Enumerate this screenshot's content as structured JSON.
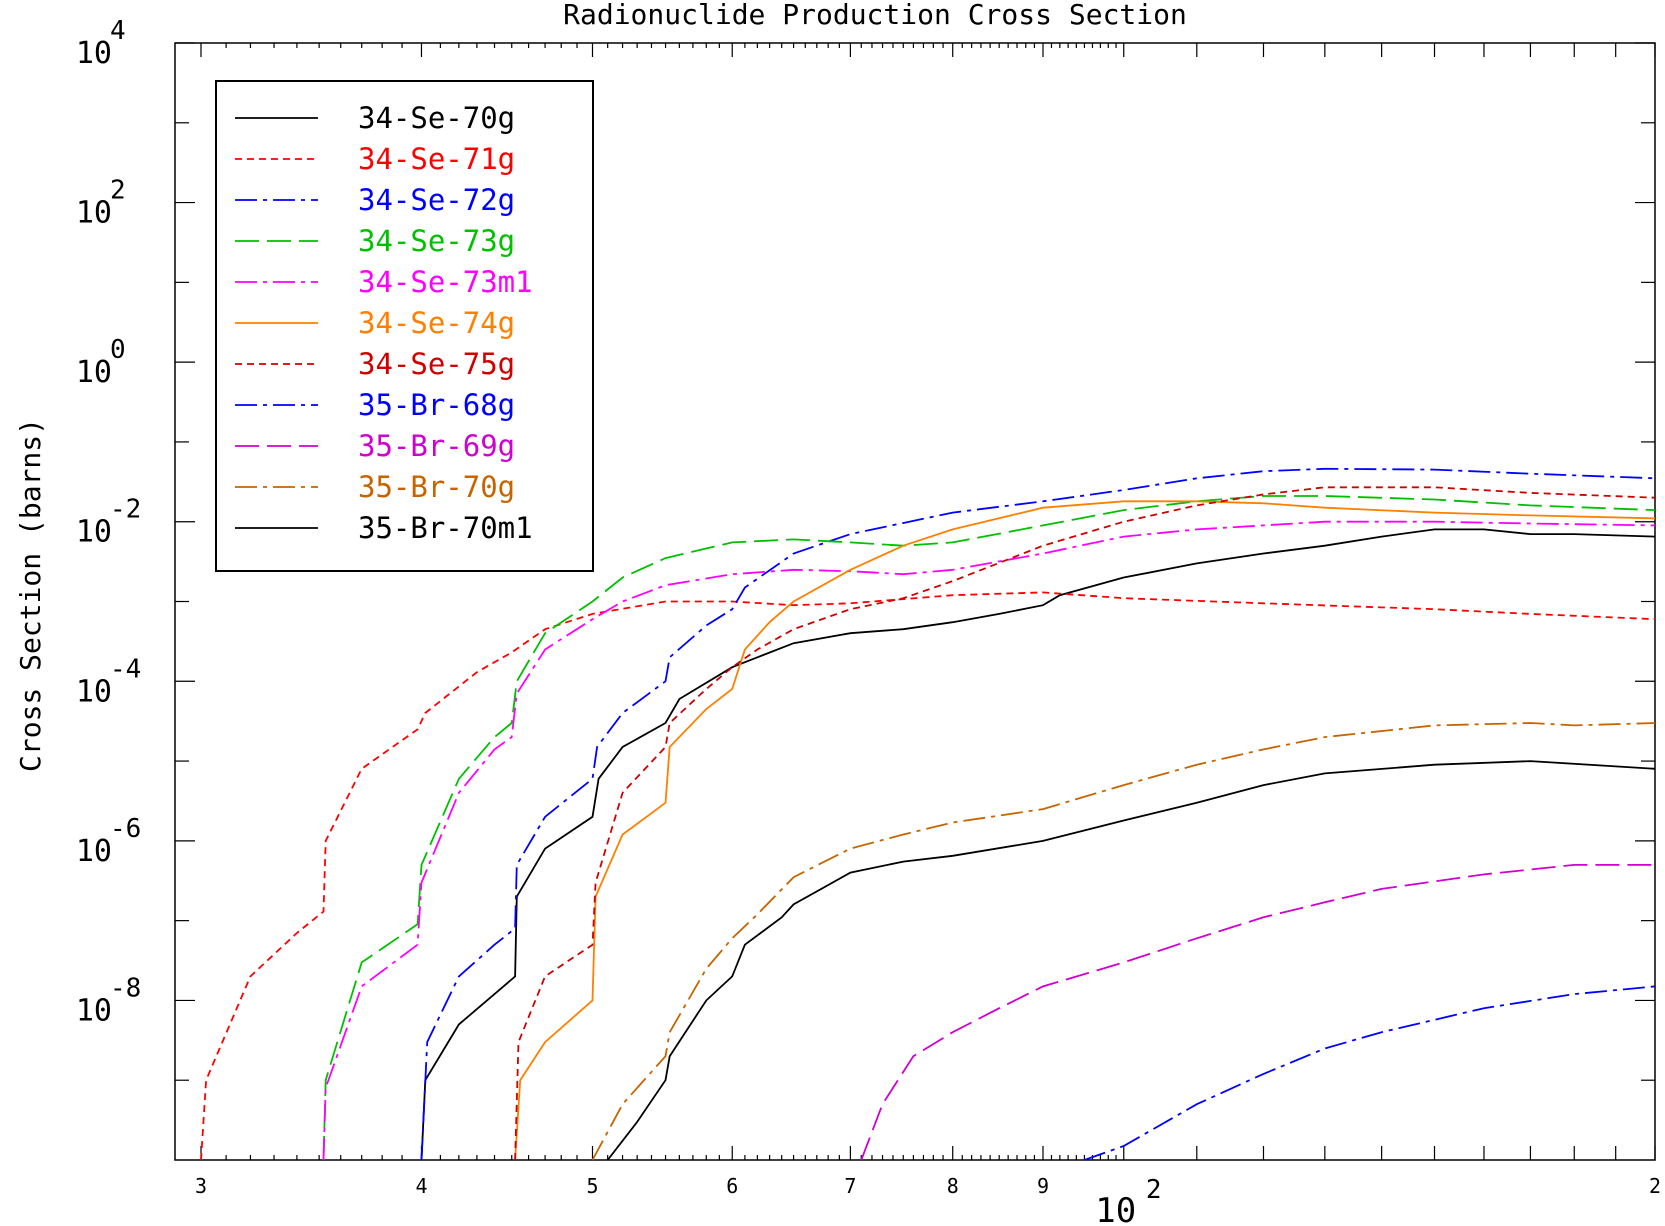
{
  "chart_data": {
    "type": "line",
    "title": "Radionuclide Production Cross Section",
    "xlabel": "",
    "ylabel": "Cross Section (barns)",
    "x_scale": "log",
    "y_scale": "log",
    "xlim": [
      29,
      200
    ],
    "ylim": [
      1e-10,
      10000
    ],
    "legend_position": "top-left",
    "grid": false,
    "x_tick_labels": [
      {
        "value": 30,
        "label": "3"
      },
      {
        "value": 40,
        "label": "4"
      },
      {
        "value": 50,
        "label": "5"
      },
      {
        "value": 60,
        "label": "6"
      },
      {
        "value": 70,
        "label": "7"
      },
      {
        "value": 80,
        "label": "8"
      },
      {
        "value": 90,
        "label": "9"
      },
      {
        "value": 200,
        "label": "2"
      }
    ],
    "x_decade_label": {
      "value": 100,
      "base": "10",
      "exp": "2"
    },
    "y_tick_labels": [
      {
        "value": 10000,
        "base": "10",
        "exp": "4"
      },
      {
        "value": 100,
        "base": "10",
        "exp": "2"
      },
      {
        "value": 1,
        "base": "10",
        "exp": "0"
      },
      {
        "value": 0.01,
        "base": "10",
        "exp": "-2"
      },
      {
        "value": 0.0001,
        "base": "10",
        "exp": "-4"
      },
      {
        "value": 1e-06,
        "base": "10",
        "exp": "-6"
      },
      {
        "value": 1e-08,
        "base": "10",
        "exp": "-8"
      }
    ],
    "series": [
      {
        "name": "34-Se-70g",
        "color": "#000000",
        "dash": "solid",
        "points": [
          [
            40,
            1e-10
          ],
          [
            40.2,
            1e-09
          ],
          [
            42,
            5e-09
          ],
          [
            44,
            1.2e-08
          ],
          [
            45.2,
            2e-08
          ],
          [
            45.3,
            2e-07
          ],
          [
            47,
            8e-07
          ],
          [
            50,
            2e-06
          ],
          [
            50.4,
            6e-06
          ],
          [
            52,
            1.5e-05
          ],
          [
            55,
            3e-05
          ],
          [
            56,
            6e-05
          ],
          [
            60,
            0.00015
          ],
          [
            62,
            0.0002
          ],
          [
            65,
            0.0003
          ],
          [
            70,
            0.0004
          ],
          [
            75,
            0.00045
          ],
          [
            80,
            0.00055
          ],
          [
            85,
            0.0007
          ],
          [
            90,
            0.0009
          ],
          [
            92,
            0.0012
          ],
          [
            100,
            0.002
          ],
          [
            110,
            0.003
          ],
          [
            120,
            0.004
          ],
          [
            130,
            0.005
          ],
          [
            140,
            0.0065
          ],
          [
            150,
            0.008
          ],
          [
            160,
            0.008
          ],
          [
            170,
            0.007
          ],
          [
            180,
            0.007
          ],
          [
            200,
            0.0065
          ]
        ]
      },
      {
        "name": "34-Se-71g",
        "color": "#ff0000",
        "dash": "short",
        "points": [
          [
            30,
            1e-10
          ],
          [
            30.2,
            1e-09
          ],
          [
            32,
            2e-08
          ],
          [
            34,
            7e-08
          ],
          [
            35.2,
            1.3e-07
          ],
          [
            35.3,
            1e-06
          ],
          [
            37,
            8e-06
          ],
          [
            39.8,
            2.5e-05
          ],
          [
            40.2,
            4e-05
          ],
          [
            43,
            0.00013
          ],
          [
            45,
            0.00023
          ],
          [
            47,
            0.00045
          ],
          [
            50,
            0.0007
          ],
          [
            55,
            0.001
          ],
          [
            60,
            0.001
          ],
          [
            65,
            0.0009
          ],
          [
            70,
            0.00095
          ],
          [
            80,
            0.0012
          ],
          [
            90,
            0.0013
          ],
          [
            100,
            0.0011
          ],
          [
            120,
            0.00095
          ],
          [
            150,
            0.0008
          ],
          [
            170,
            0.0007
          ],
          [
            200,
            0.0006
          ]
        ]
      },
      {
        "name": "34-Se-72g",
        "color": "#0000ff",
        "dash": "dashdot",
        "points": [
          [
            40,
            1e-10
          ],
          [
            40.3,
            3e-09
          ],
          [
            42,
            2e-08
          ],
          [
            44,
            5e-08
          ],
          [
            45.2,
            8e-08
          ],
          [
            45.3,
            5e-07
          ],
          [
            47,
            2e-06
          ],
          [
            50,
            6e-06
          ],
          [
            50.3,
            1.5e-05
          ],
          [
            52,
            4e-05
          ],
          [
            55,
            0.0001
          ],
          [
            55.3,
            0.0002
          ],
          [
            58,
            0.0005
          ],
          [
            60,
            0.0008
          ],
          [
            61,
            0.0015
          ],
          [
            65,
            0.004
          ],
          [
            70,
            0.007
          ],
          [
            80,
            0.013
          ],
          [
            90,
            0.018
          ],
          [
            100,
            0.025
          ],
          [
            110,
            0.035
          ],
          [
            120,
            0.043
          ],
          [
            130,
            0.046
          ],
          [
            150,
            0.045
          ],
          [
            170,
            0.04
          ],
          [
            200,
            0.035
          ]
        ]
      },
      {
        "name": "34-Se-73g",
        "color": "#00c000",
        "dash": "longdash",
        "points": [
          [
            35.2,
            1e-10
          ],
          [
            35.3,
            1e-09
          ],
          [
            37,
            3e-08
          ],
          [
            39.8,
            9e-08
          ],
          [
            40,
            5e-07
          ],
          [
            42,
            6e-06
          ],
          [
            44,
            2e-05
          ],
          [
            45,
            3e-05
          ],
          [
            45.3,
            0.0001
          ],
          [
            47,
            0.0004
          ],
          [
            50,
            0.001
          ],
          [
            52,
            0.002
          ],
          [
            55,
            0.0035
          ],
          [
            60,
            0.0055
          ],
          [
            65,
            0.006
          ],
          [
            70,
            0.0055
          ],
          [
            75,
            0.005
          ],
          [
            80,
            0.0055
          ],
          [
            90,
            0.009
          ],
          [
            100,
            0.014
          ],
          [
            110,
            0.018
          ],
          [
            120,
            0.021
          ],
          [
            130,
            0.021
          ],
          [
            150,
            0.019
          ],
          [
            170,
            0.016
          ],
          [
            200,
            0.014
          ]
        ]
      },
      {
        "name": "34-Se-73m1",
        "color": "#ff00ff",
        "dash": "dashdot",
        "points": [
          [
            35.2,
            1e-10
          ],
          [
            35.3,
            8e-10
          ],
          [
            37,
            1.5e-08
          ],
          [
            39.8,
            5e-08
          ],
          [
            40,
            3e-07
          ],
          [
            42,
            4e-06
          ],
          [
            44,
            1.4e-05
          ],
          [
            45,
            2e-05
          ],
          [
            45.3,
            7e-05
          ],
          [
            47,
            0.00025
          ],
          [
            50,
            0.0006
          ],
          [
            52,
            0.001
          ],
          [
            55,
            0.0016
          ],
          [
            60,
            0.0022
          ],
          [
            65,
            0.0025
          ],
          [
            70,
            0.0024
          ],
          [
            75,
            0.0022
          ],
          [
            80,
            0.0025
          ],
          [
            90,
            0.004
          ],
          [
            100,
            0.0065
          ],
          [
            110,
            0.008
          ],
          [
            120,
            0.009
          ],
          [
            130,
            0.01
          ],
          [
            150,
            0.01
          ],
          [
            170,
            0.0095
          ],
          [
            200,
            0.009
          ]
        ]
      },
      {
        "name": "34-Se-74g",
        "color": "#ff8000",
        "dash": "solid",
        "points": [
          [
            45.2,
            1e-10
          ],
          [
            45.5,
            1e-09
          ],
          [
            47,
            3e-09
          ],
          [
            50,
            1e-08
          ],
          [
            50.2,
            2e-07
          ],
          [
            52,
            1.2e-06
          ],
          [
            55,
            3e-06
          ],
          [
            55.3,
            1.5e-05
          ],
          [
            58,
            4.5e-05
          ],
          [
            60,
            8e-05
          ],
          [
            61,
            0.00025
          ],
          [
            63,
            0.00055
          ],
          [
            65,
            0.001
          ],
          [
            70,
            0.0025
          ],
          [
            75,
            0.005
          ],
          [
            80,
            0.008
          ],
          [
            90,
            0.015
          ],
          [
            100,
            0.018
          ],
          [
            110,
            0.018
          ],
          [
            120,
            0.017
          ],
          [
            130,
            0.015
          ],
          [
            150,
            0.013
          ],
          [
            170,
            0.012
          ],
          [
            200,
            0.011
          ]
        ]
      },
      {
        "name": "34-Se-75g",
        "color": "#d00000",
        "dash": "short",
        "points": [
          [
            45.2,
            1e-10
          ],
          [
            45.4,
            3e-09
          ],
          [
            47,
            2e-08
          ],
          [
            50,
            5e-08
          ],
          [
            50.2,
            3e-07
          ],
          [
            52,
            4e-06
          ],
          [
            55,
            1.5e-05
          ],
          [
            55.3,
            3e-05
          ],
          [
            58,
            8e-05
          ],
          [
            60,
            0.00015
          ],
          [
            62,
            0.00025
          ],
          [
            65,
            0.00045
          ],
          [
            70,
            0.0008
          ],
          [
            75,
            0.0011
          ],
          [
            80,
            0.0018
          ],
          [
            90,
            0.005
          ],
          [
            100,
            0.01
          ],
          [
            110,
            0.016
          ],
          [
            120,
            0.022
          ],
          [
            130,
            0.027
          ],
          [
            150,
            0.027
          ],
          [
            170,
            0.023
          ],
          [
            200,
            0.02
          ]
        ]
      },
      {
        "name": "35-Br-68g",
        "color": "#0000ff",
        "dash": "dashdot",
        "points": [
          [
            95,
            1e-10
          ],
          [
            100,
            1.5e-10
          ],
          [
            110,
            5e-10
          ],
          [
            120,
            1.2e-09
          ],
          [
            130,
            2.5e-09
          ],
          [
            140,
            4e-09
          ],
          [
            160,
            8e-09
          ],
          [
            180,
            1.2e-08
          ],
          [
            200,
            1.5e-08
          ]
        ]
      },
      {
        "name": "35-Br-69g",
        "color": "#d000d0",
        "dash": "longdash",
        "points": [
          [
            71,
            1e-10
          ],
          [
            73,
            5e-10
          ],
          [
            76,
            2e-09
          ],
          [
            80,
            4e-09
          ],
          [
            85,
            8e-09
          ],
          [
            90,
            1.5e-08
          ],
          [
            100,
            3e-08
          ],
          [
            110,
            6e-08
          ],
          [
            120,
            1.1e-07
          ],
          [
            130,
            1.7e-07
          ],
          [
            140,
            2.5e-07
          ],
          [
            160,
            3.8e-07
          ],
          [
            180,
            5e-07
          ],
          [
            200,
            5e-07
          ]
        ]
      },
      {
        "name": "35-Br-70g",
        "color": "#c86400",
        "dash": "dashdot",
        "points": [
          [
            50,
            1e-10
          ],
          [
            52,
            5e-10
          ],
          [
            55,
            2e-09
          ],
          [
            55.3,
            4e-09
          ],
          [
            58,
            2.5e-08
          ],
          [
            60,
            6e-08
          ],
          [
            62,
            1.2e-07
          ],
          [
            65,
            3.5e-07
          ],
          [
            70,
            8e-07
          ],
          [
            75,
            1.2e-06
          ],
          [
            80,
            1.7e-06
          ],
          [
            90,
            2.5e-06
          ],
          [
            100,
            5e-06
          ],
          [
            110,
            9e-06
          ],
          [
            120,
            1.4e-05
          ],
          [
            130,
            2e-05
          ],
          [
            150,
            2.8e-05
          ],
          [
            170,
            3e-05
          ],
          [
            180,
            2.8e-05
          ],
          [
            200,
            3e-05
          ]
        ]
      },
      {
        "name": "35-Br-70m1",
        "color": "#000000",
        "dash": "solid",
        "points": [
          [
            51,
            1e-10
          ],
          [
            53,
            3e-10
          ],
          [
            55,
            1e-09
          ],
          [
            55.3,
            2e-09
          ],
          [
            58,
            1e-08
          ],
          [
            60,
            2e-08
          ],
          [
            61,
            5e-08
          ],
          [
            64,
            1.1e-07
          ],
          [
            65,
            1.6e-07
          ],
          [
            70,
            4e-07
          ],
          [
            75,
            5.5e-07
          ],
          [
            80,
            6.5e-07
          ],
          [
            90,
            1e-06
          ],
          [
            100,
            1.8e-06
          ],
          [
            110,
            3e-06
          ],
          [
            120,
            5e-06
          ],
          [
            130,
            7e-06
          ],
          [
            150,
            9e-06
          ],
          [
            170,
            1e-05
          ],
          [
            200,
            8e-06
          ]
        ]
      }
    ]
  }
}
